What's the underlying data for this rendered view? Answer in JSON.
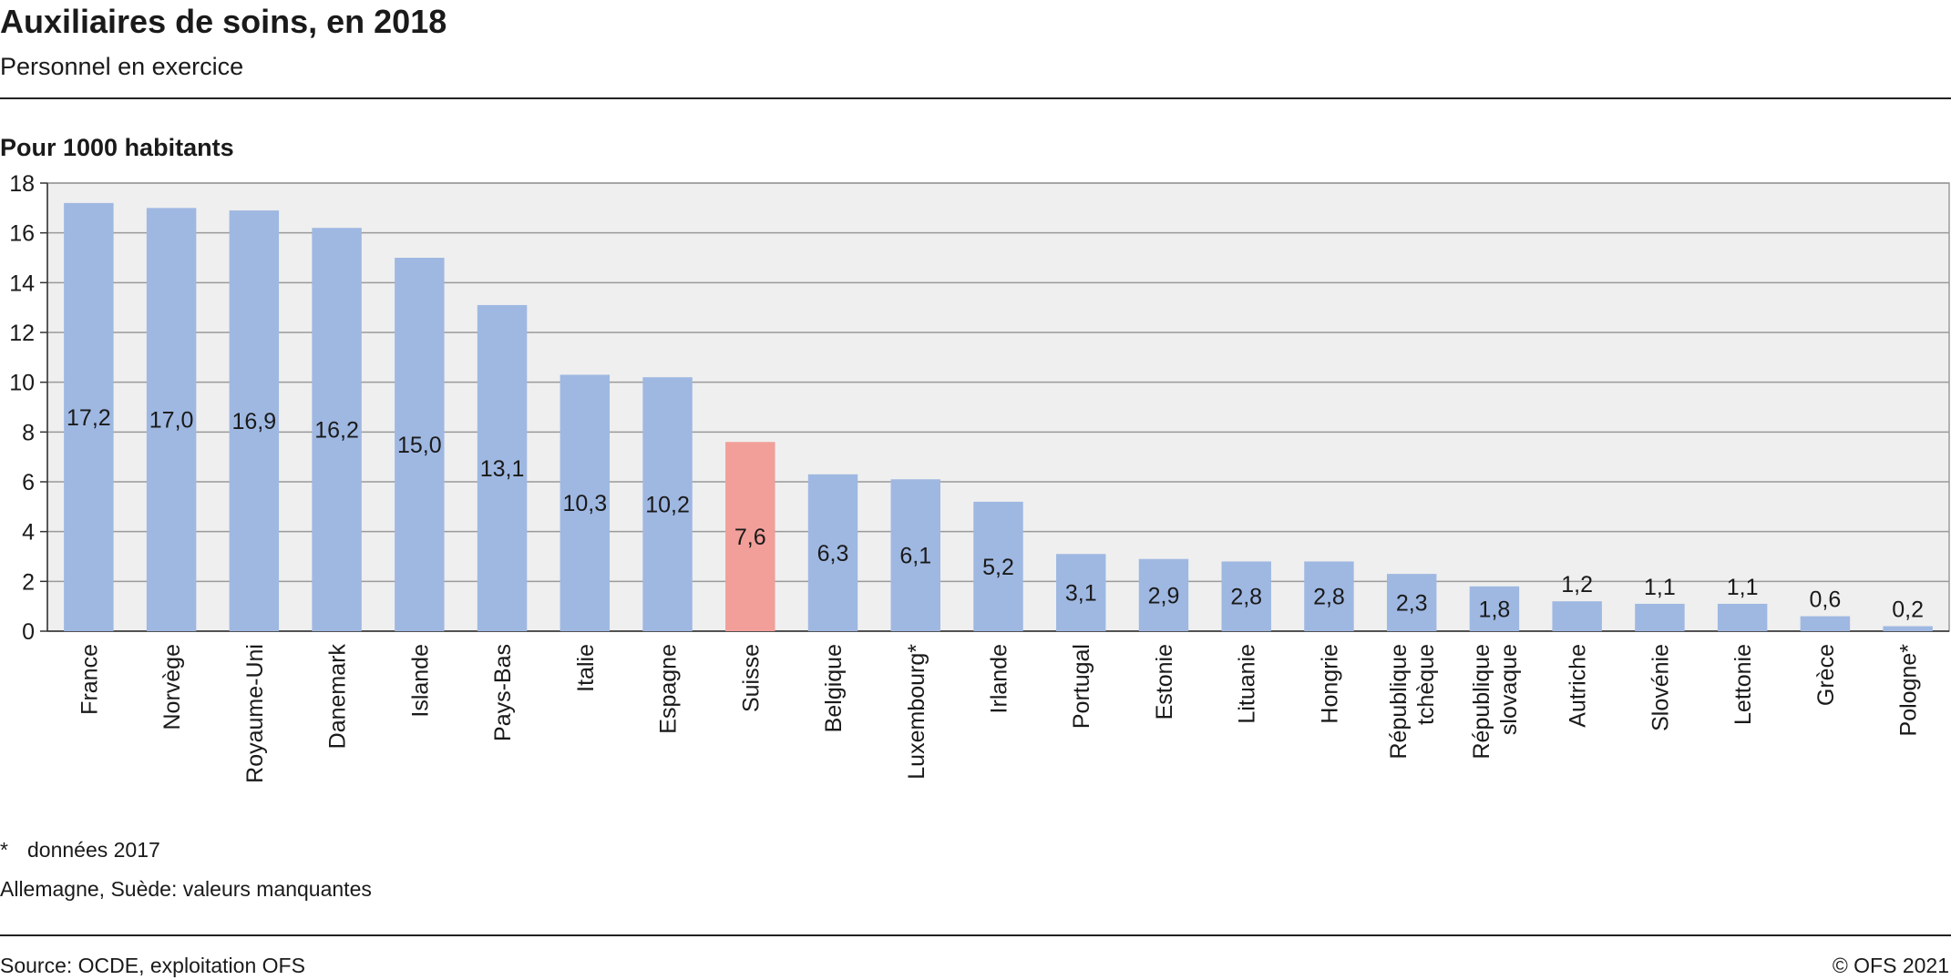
{
  "header": {
    "title": "Auxiliaires de soins, en 2018",
    "subtitle": "Personnel en exercice",
    "unit_label": "Pour 1000 habitants"
  },
  "notes": {
    "footnote_mark": "*",
    "footnote_text": "données 2017",
    "missing": "Allemagne, Suède: valeurs manquantes"
  },
  "footer": {
    "source": "Source: OCDE, exploitation OFS",
    "copyright": "© OFS 2021"
  },
  "colors": {
    "bar": "#9fb8e2",
    "highlight": "#f29e99",
    "plot_background": "#efefef",
    "grid": "#9a9a9a"
  },
  "chart_data": {
    "type": "bar",
    "orientation": "vertical",
    "categories": [
      "France",
      "Norvège",
      "Royaume-Uni",
      "Danemark",
      "Islande",
      "Pays-Bas",
      "Italie",
      "Espagne",
      "Suisse",
      "Belgique",
      "Luxembourg*",
      "Irlande",
      "Portugal",
      "Estonie",
      "Lituanie",
      "Hongrie",
      "République tchèque",
      "République slovaque",
      "Autriche",
      "Slovénie",
      "Lettonie",
      "Grèce",
      "Pologne*"
    ],
    "category_lines": [
      [
        "France"
      ],
      [
        "Norvège"
      ],
      [
        "Royaume-Uni"
      ],
      [
        "Danemark"
      ],
      [
        "Islande"
      ],
      [
        "Pays-Bas"
      ],
      [
        "Italie"
      ],
      [
        "Espagne"
      ],
      [
        "Suisse"
      ],
      [
        "Belgique"
      ],
      [
        "Luxembourg*"
      ],
      [
        "Irlande"
      ],
      [
        "Portugal"
      ],
      [
        "Estonie"
      ],
      [
        "Lituanie"
      ],
      [
        "Hongrie"
      ],
      [
        "République",
        "tchèque"
      ],
      [
        "République",
        "slovaque"
      ],
      [
        "Autriche"
      ],
      [
        "Slovénie"
      ],
      [
        "Lettonie"
      ],
      [
        "Grèce"
      ],
      [
        "Pologne*"
      ]
    ],
    "values": [
      17.2,
      17.0,
      16.9,
      16.2,
      15.0,
      13.1,
      10.3,
      10.2,
      7.6,
      6.3,
      6.1,
      5.2,
      3.1,
      2.9,
      2.8,
      2.8,
      2.3,
      1.8,
      1.2,
      1.1,
      1.1,
      0.6,
      0.2
    ],
    "value_labels": [
      "17,2",
      "17,0",
      "16,9",
      "16,2",
      "15,0",
      "13,1",
      "10,3",
      "10,2",
      "7,6",
      "6,3",
      "6,1",
      "5,2",
      "3,1",
      "2,9",
      "2,8",
      "2,8",
      "2,3",
      "1,8",
      "1,2",
      "1,1",
      "1,1",
      "0,6",
      "0,2"
    ],
    "highlight": "Suisse",
    "ylim": [
      0,
      18
    ],
    "yticks": [
      0,
      2,
      4,
      6,
      8,
      10,
      12,
      14,
      16,
      18
    ],
    "ylabel": "Pour 1000 habitants",
    "grid": true,
    "legend": "none"
  }
}
